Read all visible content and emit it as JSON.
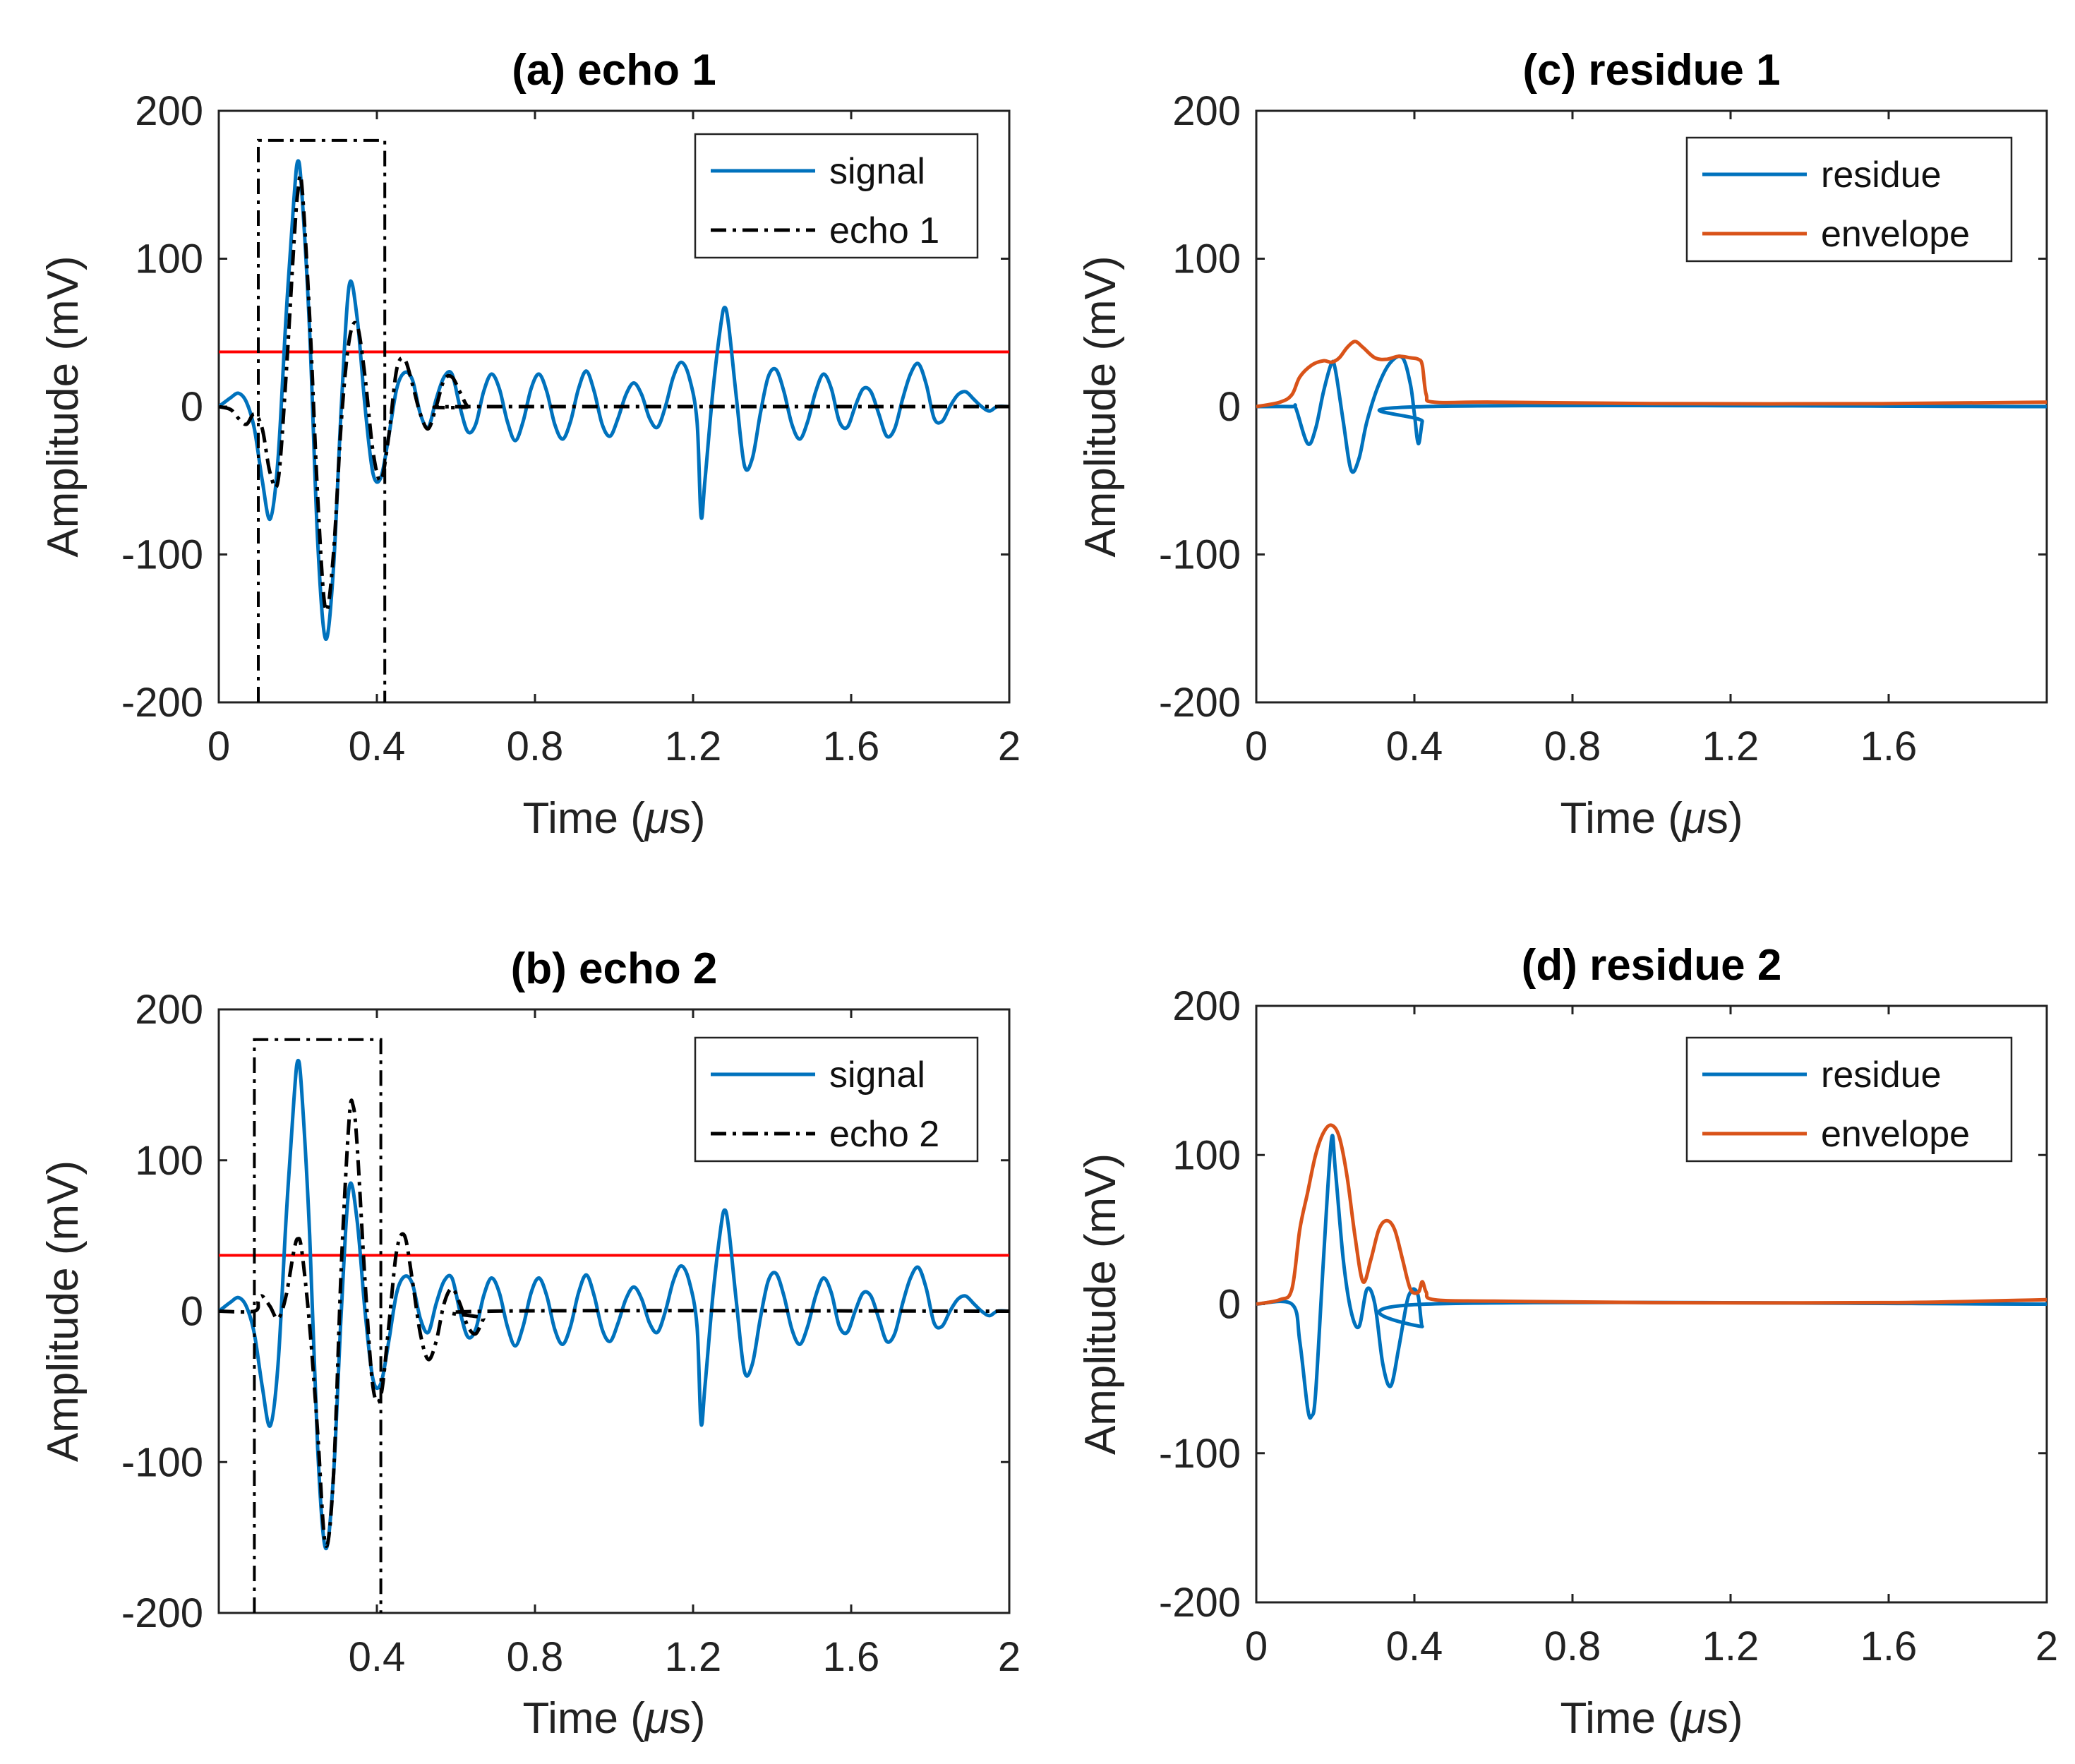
{
  "colors": {
    "signal": "#0072BD",
    "envelope": "#D95319",
    "threshold": "#FF0000",
    "echo": "#000000",
    "axis": "#222222"
  },
  "chart_data": [
    {
      "id": "a",
      "type": "line",
      "title": "(a) echo 1",
      "xlabel_main": "Time (",
      "xlabel_unit": "μ",
      "xlabel_end": "s)",
      "ylabel": "Amplitude (mV)",
      "xlim": [
        0,
        2
      ],
      "ylim": [
        -200,
        200
      ],
      "xticks": [
        0,
        0.4,
        0.8,
        1.2,
        1.6,
        2
      ],
      "xtick_labels": [
        "0",
        "0.4",
        "0.8",
        "1.2",
        "1.6",
        "2"
      ],
      "yticks": [
        -200,
        -100,
        0,
        100,
        200
      ],
      "ytick_labels": [
        "-200",
        "-100",
        "0",
        "100",
        "200"
      ],
      "threshold": 37,
      "window": {
        "x0": 0.1,
        "x1": 0.42,
        "top": 180
      },
      "legend": {
        "position": "top-right",
        "entries": [
          "signal",
          "echo 1"
        ]
      },
      "series": [
        {
          "name": "signal",
          "style": "solid",
          "color": "signal",
          "generator": "signal"
        },
        {
          "name": "echo 1",
          "style": "dashdot",
          "color": "echo",
          "generator": "echo1"
        }
      ]
    },
    {
      "id": "c",
      "type": "line",
      "title": "(c) residue 1",
      "xlabel_main": "Time (",
      "xlabel_unit": "μ",
      "xlabel_end": "s)",
      "ylabel": "Amplitude (mV)",
      "xlim": [
        0,
        2
      ],
      "ylim": [
        -200,
        200
      ],
      "xticks": [
        0,
        0.4,
        0.8,
        1.2,
        1.6
      ],
      "xtick_labels": [
        "0",
        "0.4",
        "0.8",
        "1.2",
        "1.6"
      ],
      "yticks": [
        -200,
        -100,
        0,
        100,
        200
      ],
      "ytick_labels": [
        "-200",
        "-100",
        "0",
        "100",
        "200"
      ],
      "legend": {
        "position": "top-right",
        "entries": [
          "residue",
          "envelope"
        ]
      },
      "series": [
        {
          "name": "residue",
          "style": "solid",
          "color": "signal",
          "generator": "residue1"
        },
        {
          "name": "envelope",
          "style": "solid",
          "color": "envelope",
          "generator": "env1"
        }
      ]
    },
    {
      "id": "b",
      "type": "line",
      "title": "(b) echo 2",
      "xlabel_main": "Time (",
      "xlabel_unit": "μ",
      "xlabel_end": "s)",
      "ylabel": "Amplitude (mV)",
      "xlim": [
        0,
        2
      ],
      "ylim": [
        -200,
        200
      ],
      "xticks": [
        0.4,
        0.8,
        1.2,
        1.6,
        2
      ],
      "xtick_labels": [
        "0.4",
        "0.8",
        "1.2",
        "1.6",
        "2"
      ],
      "yticks": [
        -200,
        -100,
        0,
        100,
        200
      ],
      "ytick_labels": [
        "-200",
        "-100",
        "0",
        "100",
        "200"
      ],
      "threshold": 37,
      "window": {
        "x0": 0.09,
        "x1": 0.41,
        "top": 180
      },
      "legend": {
        "position": "top-right",
        "entries": [
          "signal",
          "echo 2"
        ]
      },
      "series": [
        {
          "name": "signal",
          "style": "solid",
          "color": "signal",
          "generator": "signal"
        },
        {
          "name": "echo 2",
          "style": "dashdot",
          "color": "echo",
          "generator": "echo2"
        }
      ]
    },
    {
      "id": "d",
      "type": "line",
      "title": "(d) residue 2",
      "xlabel_main": "Time (",
      "xlabel_unit": "μ",
      "xlabel_end": "s)",
      "ylabel": "Amplitude (mV)",
      "xlim": [
        0,
        2
      ],
      "ylim": [
        -200,
        200
      ],
      "xticks": [
        0,
        0.4,
        0.8,
        1.2,
        1.6,
        2
      ],
      "xtick_labels": [
        "0",
        "0.4",
        "0.8",
        "1.2",
        "1.6",
        "2"
      ],
      "yticks": [
        -200,
        -100,
        0,
        100,
        200
      ],
      "ytick_labels": [
        "-200",
        "-100",
        "0",
        "100",
        "200"
      ],
      "legend": {
        "position": "top-right",
        "entries": [
          "residue",
          "envelope"
        ]
      },
      "series": [
        {
          "name": "residue",
          "style": "solid",
          "color": "signal",
          "generator": "residue2"
        },
        {
          "name": "envelope",
          "style": "solid",
          "color": "envelope",
          "generator": "env2"
        }
      ]
    }
  ],
  "waveforms": {
    "signal": {
      "points": [
        [
          0,
          0
        ],
        [
          0.01,
          2
        ],
        [
          0.03,
          6
        ],
        [
          0.05,
          9
        ],
        [
          0.07,
          3
        ],
        [
          0.09,
          -15
        ],
        [
          0.11,
          -50
        ],
        [
          0.13,
          -76
        ],
        [
          0.15,
          -35
        ],
        [
          0.17,
          60
        ],
        [
          0.19,
          140
        ],
        [
          0.2,
          166
        ],
        [
          0.21,
          145
        ],
        [
          0.23,
          50
        ],
        [
          0.25,
          -90
        ],
        [
          0.27,
          -157
        ],
        [
          0.29,
          -110
        ],
        [
          0.31,
          0
        ],
        [
          0.33,
          82
        ],
        [
          0.35,
          60
        ],
        [
          0.37,
          0
        ],
        [
          0.39,
          -45
        ],
        [
          0.41,
          -48
        ],
        [
          0.43,
          -20
        ],
        [
          0.45,
          12
        ],
        [
          0.47,
          23
        ],
        [
          0.49,
          18
        ],
        [
          0.51,
          -5
        ],
        [
          0.53,
          -14
        ],
        [
          0.55,
          5
        ],
        [
          0.57,
          20
        ],
        [
          0.59,
          22
        ],
        [
          0.61,
          0
        ],
        [
          0.63,
          -17
        ],
        [
          0.65,
          -12
        ],
        [
          0.67,
          10
        ],
        [
          0.69,
          22
        ],
        [
          0.71,
          12
        ],
        [
          0.73,
          -10
        ],
        [
          0.75,
          -23
        ],
        [
          0.77,
          -10
        ],
        [
          0.79,
          12
        ],
        [
          0.81,
          22
        ],
        [
          0.83,
          10
        ],
        [
          0.85,
          -12
        ],
        [
          0.87,
          -22
        ],
        [
          0.89,
          -10
        ],
        [
          0.91,
          12
        ],
        [
          0.93,
          24
        ],
        [
          0.95,
          10
        ],
        [
          0.97,
          -12
        ],
        [
          0.99,
          -20
        ],
        [
          1.01,
          -8
        ],
        [
          1.03,
          8
        ],
        [
          1.05,
          16
        ],
        [
          1.07,
          8
        ],
        [
          1.09,
          -8
        ],
        [
          1.11,
          -14
        ],
        [
          1.13,
          0
        ],
        [
          1.15,
          20
        ],
        [
          1.17,
          30
        ],
        [
          1.19,
          20
        ],
        [
          1.21,
          -10
        ],
        [
          1.22,
          -74
        ],
        [
          1.23,
          -50
        ],
        [
          1.25,
          10
        ],
        [
          1.27,
          55
        ],
        [
          1.28,
          67
        ],
        [
          1.29,
          55
        ],
        [
          1.31,
          5
        ],
        [
          1.33,
          -40
        ],
        [
          1.35,
          -35
        ],
        [
          1.37,
          -5
        ],
        [
          1.39,
          20
        ],
        [
          1.41,
          25
        ],
        [
          1.43,
          10
        ],
        [
          1.45,
          -12
        ],
        [
          1.47,
          -22
        ],
        [
          1.49,
          -10
        ],
        [
          1.51,
          10
        ],
        [
          1.53,
          22
        ],
        [
          1.55,
          12
        ],
        [
          1.57,
          -10
        ],
        [
          1.59,
          -14
        ],
        [
          1.61,
          0
        ],
        [
          1.63,
          12
        ],
        [
          1.65,
          10
        ],
        [
          1.67,
          -5
        ],
        [
          1.69,
          -20
        ],
        [
          1.71,
          -15
        ],
        [
          1.73,
          5
        ],
        [
          1.75,
          22
        ],
        [
          1.77,
          29
        ],
        [
          1.79,
          15
        ],
        [
          1.81,
          -8
        ],
        [
          1.83,
          -10
        ],
        [
          1.85,
          0
        ],
        [
          1.87,
          8
        ],
        [
          1.89,
          10
        ],
        [
          1.91,
          5
        ],
        [
          1.93,
          0
        ],
        [
          1.95,
          -3
        ],
        [
          1.97,
          0
        ],
        [
          2,
          0
        ]
      ]
    },
    "echo1": {
      "points": [
        [
          0,
          0
        ],
        [
          0.03,
          -2
        ],
        [
          0.05,
          -8
        ],
        [
          0.07,
          -12
        ],
        [
          0.09,
          -5
        ],
        [
          0.11,
          -15
        ],
        [
          0.13,
          -45
        ],
        [
          0.15,
          -50
        ],
        [
          0.17,
          20
        ],
        [
          0.19,
          110
        ],
        [
          0.2,
          145
        ],
        [
          0.21,
          150
        ],
        [
          0.23,
          60
        ],
        [
          0.25,
          -60
        ],
        [
          0.27,
          -137
        ],
        [
          0.29,
          -100
        ],
        [
          0.31,
          -10
        ],
        [
          0.33,
          45
        ],
        [
          0.35,
          55
        ],
        [
          0.37,
          20
        ],
        [
          0.39,
          -30
        ],
        [
          0.41,
          -50
        ],
        [
          0.43,
          -20
        ],
        [
          0.45,
          25
        ],
        [
          0.47,
          32
        ],
        [
          0.49,
          15
        ],
        [
          0.51,
          -5
        ],
        [
          0.53,
          -15
        ],
        [
          0.55,
          0
        ],
        [
          0.57,
          18
        ],
        [
          0.59,
          20
        ],
        [
          0.61,
          10
        ],
        [
          0.63,
          0
        ],
        [
          0.65,
          0
        ],
        [
          2,
          0
        ]
      ]
    },
    "echo2": {
      "points": [
        [
          0,
          0
        ],
        [
          0.09,
          0
        ],
        [
          0.1,
          7
        ],
        [
          0.11,
          10
        ],
        [
          0.13,
          3
        ],
        [
          0.15,
          -5
        ],
        [
          0.17,
          10
        ],
        [
          0.19,
          40
        ],
        [
          0.2,
          48
        ],
        [
          0.21,
          40
        ],
        [
          0.23,
          -10
        ],
        [
          0.25,
          -80
        ],
        [
          0.27,
          -155
        ],
        [
          0.29,
          -110
        ],
        [
          0.31,
          30
        ],
        [
          0.33,
          128
        ],
        [
          0.34,
          136
        ],
        [
          0.35,
          110
        ],
        [
          0.37,
          20
        ],
        [
          0.39,
          -50
        ],
        [
          0.41,
          -56
        ],
        [
          0.43,
          -10
        ],
        [
          0.45,
          40
        ],
        [
          0.47,
          50
        ],
        [
          0.49,
          20
        ],
        [
          0.51,
          -15
        ],
        [
          0.53,
          -32
        ],
        [
          0.55,
          -20
        ],
        [
          0.57,
          5
        ],
        [
          0.59,
          15
        ],
        [
          0.61,
          5
        ],
        [
          0.63,
          -10
        ],
        [
          0.65,
          -15
        ],
        [
          0.67,
          -5
        ],
        [
          0.69,
          0
        ],
        [
          2,
          0
        ]
      ]
    },
    "residue1": {
      "points": [
        [
          0,
          0
        ],
        [
          0.09,
          0
        ],
        [
          0.1,
          -1
        ],
        [
          0.13,
          -25
        ],
        [
          0.15,
          -15
        ],
        [
          0.17,
          10
        ],
        [
          0.19,
          29
        ],
        [
          0.2,
          25
        ],
        [
          0.22,
          -10
        ],
        [
          0.24,
          -43
        ],
        [
          0.26,
          -35
        ],
        [
          0.28,
          -10
        ],
        [
          0.31,
          15
        ],
        [
          0.34,
          30
        ],
        [
          0.37,
          33
        ],
        [
          0.39,
          15
        ],
        [
          0.4,
          -5
        ],
        [
          0.41,
          -25
        ],
        [
          0.42,
          -10
        ],
        [
          0.43,
          0
        ],
        [
          2,
          0
        ]
      ]
    },
    "env1": {
      "points": [
        [
          0,
          0
        ],
        [
          0.06,
          3
        ],
        [
          0.09,
          8
        ],
        [
          0.11,
          20
        ],
        [
          0.14,
          28
        ],
        [
          0.17,
          31
        ],
        [
          0.19,
          30
        ],
        [
          0.21,
          33
        ],
        [
          0.23,
          40
        ],
        [
          0.25,
          44
        ],
        [
          0.27,
          40
        ],
        [
          0.3,
          33
        ],
        [
          0.33,
          32
        ],
        [
          0.36,
          34
        ],
        [
          0.39,
          33
        ],
        [
          0.41,
          32
        ],
        [
          0.42,
          28
        ],
        [
          0.43,
          8
        ],
        [
          0.45,
          3
        ],
        [
          0.6,
          3
        ],
        [
          1.0,
          2
        ],
        [
          1.6,
          2
        ],
        [
          2,
          3
        ]
      ]
    },
    "residue2": {
      "points": [
        [
          0,
          0
        ],
        [
          0.09,
          0
        ],
        [
          0.11,
          -25
        ],
        [
          0.13,
          -70
        ],
        [
          0.14,
          -75
        ],
        [
          0.15,
          -60
        ],
        [
          0.17,
          30
        ],
        [
          0.19,
          110
        ],
        [
          0.2,
          90
        ],
        [
          0.22,
          30
        ],
        [
          0.24,
          -5
        ],
        [
          0.26,
          -15
        ],
        [
          0.28,
          10
        ],
        [
          0.3,
          0
        ],
        [
          0.32,
          -40
        ],
        [
          0.34,
          -55
        ],
        [
          0.36,
          -30
        ],
        [
          0.38,
          0
        ],
        [
          0.39,
          8
        ],
        [
          0.4,
          10
        ],
        [
          0.41,
          5
        ],
        [
          0.42,
          -15
        ],
        [
          0.43,
          0
        ],
        [
          2,
          0
        ]
      ]
    },
    "env2": {
      "points": [
        [
          0,
          0
        ],
        [
          0.06,
          3
        ],
        [
          0.09,
          10
        ],
        [
          0.11,
          50
        ],
        [
          0.13,
          75
        ],
        [
          0.15,
          100
        ],
        [
          0.17,
          115
        ],
        [
          0.19,
          120
        ],
        [
          0.21,
          112
        ],
        [
          0.23,
          85
        ],
        [
          0.25,
          45
        ],
        [
          0.27,
          15
        ],
        [
          0.29,
          30
        ],
        [
          0.31,
          50
        ],
        [
          0.33,
          56
        ],
        [
          0.35,
          50
        ],
        [
          0.37,
          30
        ],
        [
          0.39,
          10
        ],
        [
          0.41,
          8
        ],
        [
          0.42,
          15
        ],
        [
          0.43,
          8
        ],
        [
          0.45,
          3
        ],
        [
          0.6,
          2
        ],
        [
          1.0,
          1
        ],
        [
          1.6,
          1
        ],
        [
          2,
          3
        ]
      ]
    }
  }
}
